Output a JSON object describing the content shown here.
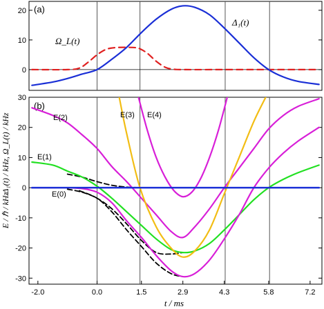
{
  "chart_data": [
    {
      "panel_label": "(a)",
      "type": "line",
      "ylabel": "Δ₁(t) / kHz,  Ω_L(t) / kHz",
      "xlim": [
        -2.3,
        7.6
      ],
      "ylim": [
        -7,
        23
      ],
      "yticks": [
        0,
        10,
        20
      ],
      "vlines": [
        0,
        1.45,
        4.33,
        5.83
      ],
      "series": [
        {
          "name": "Ω_L(t)",
          "color": "#e02020",
          "dash": true,
          "x": [
            -2.2,
            -1.0,
            -0.6,
            -0.3,
            0.0,
            0.3,
            0.6,
            1.0,
            1.3,
            1.45,
            1.7,
            2.0,
            2.3,
            2.6,
            3.0,
            4.0,
            5.0,
            6.0,
            7.5
          ],
          "y": [
            0,
            0,
            0.5,
            2.5,
            5.0,
            6.8,
            7.4,
            7.5,
            7.4,
            7.0,
            5.5,
            2.8,
            0.8,
            0.1,
            0,
            0,
            0,
            0,
            0
          ]
        },
        {
          "name": "Δ₁(t)",
          "color": "#1a2fd6",
          "dash": false,
          "x": [
            -2.2,
            -1.5,
            -1.0,
            -0.5,
            0.0,
            0.5,
            1.0,
            1.5,
            2.0,
            2.5,
            2.9,
            3.3,
            3.8,
            4.3,
            4.8,
            5.3,
            5.8,
            6.3,
            6.8,
            7.5
          ],
          "y": [
            -5.3,
            -4.2,
            -3.0,
            -1.5,
            0.0,
            3.5,
            7.5,
            12.5,
            17.0,
            20.3,
            21.5,
            21.0,
            18.5,
            14.0,
            9.0,
            4.0,
            0.0,
            -2.5,
            -4.0,
            -5.0
          ]
        }
      ],
      "annotations": [
        "Ω_L(t)",
        "Δ₁(t)"
      ]
    },
    {
      "panel_label": "(b)",
      "type": "line",
      "ylabel": "E / ℏ / kHz",
      "xlabel": "t / ms",
      "xlim": [
        -2.3,
        7.6
      ],
      "ylim": [
        -32,
        30
      ],
      "yticks": [
        -30,
        -20,
        -10,
        0,
        10,
        20,
        30
      ],
      "xticks": [
        -2.0,
        0.0,
        1.5,
        2.9,
        4.3,
        5.8,
        7.2
      ],
      "xtick_labels": [
        "-2.0",
        "0.0",
        "1.5",
        "2.9",
        "4.3",
        "5.8",
        "7.2"
      ],
      "vlines": [
        0,
        1.45,
        4.33,
        5.83
      ],
      "annotations": [
        "E(0)",
        "E(1)",
        "E(2)",
        "E(3)",
        "E(4)"
      ],
      "series": [
        {
          "name": "E(0)",
          "color": "#1a2fd6",
          "width": 2.6,
          "dash": false,
          "x": [
            -2.2,
            7.5
          ],
          "y": [
            0,
            0
          ]
        },
        {
          "name": "E(1)",
          "color": "#22e022",
          "width": 2.2,
          "dash": false,
          "x": [
            -2.2,
            -1.5,
            -1.0,
            -0.5,
            0.0,
            0.5,
            1.0,
            1.5,
            2.0,
            2.5,
            2.9,
            3.3,
            3.8,
            4.3,
            4.8,
            5.3,
            5.8,
            6.3,
            6.8,
            7.5
          ],
          "y": [
            8.5,
            7.5,
            5.5,
            3.5,
            0.5,
            -3.5,
            -8.0,
            -12.5,
            -17.0,
            -20.5,
            -21.5,
            -21.0,
            -18.5,
            -14.0,
            -9.0,
            -4.0,
            0.0,
            2.8,
            5.0,
            7.5
          ]
        },
        {
          "name": "E(2)",
          "color": "#d81fd8",
          "width": 2.2,
          "dash": false,
          "x": [
            -2.2,
            -1.5,
            -1.0,
            -0.5,
            0.0,
            0.5,
            1.0,
            1.5,
            2.0,
            2.5,
            2.9,
            3.3,
            3.8,
            4.3,
            4.8,
            5.3,
            5.8,
            6.3,
            6.8,
            7.5
          ],
          "y": [
            26.5,
            24.0,
            21.5,
            17.5,
            13.0,
            7.0,
            2.0,
            -3.5,
            -9.0,
            -14.5,
            -16.5,
            -13.0,
            -7.0,
            0.0,
            6.5,
            13.0,
            19.5,
            24.0,
            27.0,
            29.5
          ]
        },
        {
          "name": "E(3)",
          "color": "#f2bd14",
          "width": 2.2,
          "dash": false,
          "x": [
            0.75,
            1.0,
            1.45,
            2.0,
            2.5,
            2.9,
            3.3,
            3.8,
            4.3,
            4.8,
            5.3,
            5.7
          ],
          "y": [
            30,
            18,
            0,
            -13.0,
            -20.0,
            -23.0,
            -21.0,
            -14.0,
            -2.0,
            10.0,
            22.0,
            30
          ]
        },
        {
          "name": "E(4)",
          "color": "#d81fd8",
          "width": 2.2,
          "dash": false,
          "x": [
            1.4,
            1.7,
            2.0,
            2.3,
            2.6,
            2.9,
            3.2,
            3.5,
            3.8,
            4.1,
            4.4
          ],
          "y": [
            30,
            19.0,
            10.0,
            3.5,
            -1.0,
            -3.0,
            -1.5,
            3.0,
            10.0,
            19.0,
            30
          ]
        },
        {
          "name": "E(5)",
          "color": "#d81fd8",
          "width": 2.2,
          "dash": false,
          "x": [
            -2.2,
            -1.5,
            -1.0,
            -0.5,
            0.0,
            0.5,
            1.0,
            1.5,
            2.0,
            2.5,
            2.9,
            3.3,
            3.8,
            4.3,
            4.8,
            5.3,
            5.8,
            6.3,
            6.8,
            7.5
          ],
          "y": [
            0,
            0,
            0,
            -0.3,
            -1.5,
            -5.0,
            -11.0,
            -16.5,
            -22.5,
            -27.5,
            -29.5,
            -28.5,
            -24.0,
            -17.0,
            -9.0,
            0.0,
            6.5,
            11.5,
            15.5,
            20.0
          ]
        },
        {
          "name": "dashed-upper",
          "color": "#000000",
          "width": 1.8,
          "dash": true,
          "x": [
            -1.0,
            -0.5,
            0.0,
            0.5,
            1.0,
            1.5
          ],
          "y": [
            4.5,
            3.5,
            2.0,
            0.8,
            0.2,
            0.0
          ]
        },
        {
          "name": "dashed-lower",
          "color": "#000000",
          "width": 1.8,
          "dash": true,
          "x": [
            -1.0,
            -0.5,
            0.0,
            0.5,
            1.0,
            1.5,
            2.0,
            2.5,
            2.9
          ],
          "y": [
            -0.5,
            -1.5,
            -3.5,
            -7.0,
            -12.0,
            -17.5,
            -21.5,
            -22.0,
            -21.5
          ]
        },
        {
          "name": "dashed-lowest",
          "color": "#000000",
          "width": 1.8,
          "dash": true,
          "x": [
            -0.6,
            0.0,
            0.5,
            1.0,
            1.5,
            2.0,
            2.5,
            2.9
          ],
          "y": [
            -1.0,
            -3.5,
            -8.0,
            -14.0,
            -19.5,
            -25.0,
            -28.5,
            -29.5
          ]
        }
      ]
    }
  ]
}
